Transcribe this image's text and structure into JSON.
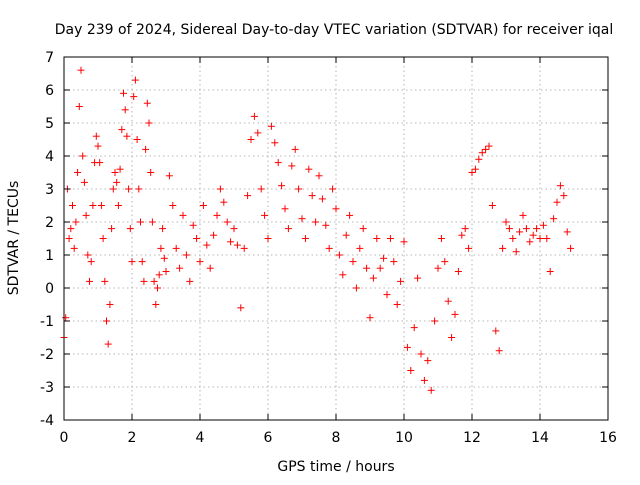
{
  "chart_data": {
    "type": "scatter",
    "title": "Day 239 of 2024, Sidereal Day-to-day VTEC variation (SDTVAR) for receiver iqal",
    "xlabel": "GPS time / hours",
    "ylabel": "SDTVAR / TECUs",
    "xlim": [
      0,
      16
    ],
    "ylim": [
      -4,
      7
    ],
    "xticks": [
      "0",
      "2",
      "4",
      "6",
      "8",
      "10",
      "12",
      "14",
      "16"
    ],
    "yticks": [
      "-4",
      "-3",
      "-2",
      "-1",
      "0",
      "1",
      "2",
      "3",
      "4",
      "5",
      "6",
      "7"
    ],
    "grid": true,
    "marker": "+",
    "color": "#ff0000",
    "series": [
      {
        "name": "SDTVAR",
        "x": [
          0.0,
          0.05,
          0.1,
          0.15,
          0.2,
          0.25,
          0.3,
          0.35,
          0.4,
          0.45,
          0.5,
          0.55,
          0.6,
          0.65,
          0.7,
          0.75,
          0.8,
          0.85,
          0.9,
          0.95,
          1.0,
          1.05,
          1.1,
          1.15,
          1.2,
          1.25,
          1.3,
          1.35,
          1.4,
          1.45,
          1.5,
          1.55,
          1.6,
          1.65,
          1.7,
          1.75,
          1.8,
          1.85,
          1.9,
          1.95,
          2.0,
          2.05,
          2.1,
          2.15,
          2.2,
          2.25,
          2.3,
          2.35,
          2.4,
          2.45,
          2.5,
          2.55,
          2.6,
          2.65,
          2.7,
          2.75,
          2.8,
          2.85,
          2.9,
          2.95,
          3.0,
          3.1,
          3.2,
          3.3,
          3.4,
          3.5,
          3.6,
          3.7,
          3.8,
          3.9,
          4.0,
          4.1,
          4.2,
          4.3,
          4.4,
          4.5,
          4.6,
          4.7,
          4.8,
          4.9,
          5.0,
          5.1,
          5.2,
          5.3,
          5.4,
          5.5,
          5.6,
          5.7,
          5.8,
          5.9,
          6.0,
          6.1,
          6.2,
          6.3,
          6.4,
          6.5,
          6.6,
          6.7,
          6.8,
          6.9,
          7.0,
          7.1,
          7.2,
          7.3,
          7.4,
          7.5,
          7.6,
          7.7,
          7.8,
          7.9,
          8.0,
          8.1,
          8.2,
          8.3,
          8.4,
          8.5,
          8.6,
          8.7,
          8.8,
          8.9,
          9.0,
          9.1,
          9.2,
          9.3,
          9.4,
          9.5,
          9.6,
          9.7,
          9.8,
          9.9,
          10.0,
          10.1,
          10.2,
          10.3,
          10.4,
          10.5,
          10.6,
          10.7,
          10.8,
          10.9,
          11.0,
          11.1,
          11.2,
          11.3,
          11.4,
          11.5,
          11.6,
          11.7,
          11.8,
          11.9,
          12.0,
          12.1,
          12.2,
          12.3,
          12.4,
          12.5,
          12.6,
          12.7,
          12.8,
          12.9,
          13.0,
          13.1,
          13.2,
          13.3,
          13.4,
          13.5,
          13.6,
          13.7,
          13.8,
          13.9,
          14.0,
          14.1,
          14.2,
          14.3,
          14.4,
          14.5,
          14.6,
          14.7,
          14.8,
          14.9
        ],
        "y": [
          -1.5,
          -0.9,
          3.0,
          1.5,
          1.8,
          2.5,
          1.2,
          2.0,
          3.5,
          5.5,
          6.6,
          4.0,
          3.2,
          2.2,
          1.0,
          0.2,
          0.8,
          2.5,
          3.8,
          4.6,
          4.3,
          3.8,
          2.5,
          1.5,
          0.2,
          -1.0,
          -1.7,
          -0.5,
          1.8,
          3.0,
          3.5,
          3.2,
          2.5,
          3.6,
          4.8,
          5.9,
          5.4,
          4.6,
          3.0,
          1.8,
          0.8,
          5.8,
          6.3,
          4.5,
          3.0,
          2.0,
          0.8,
          0.2,
          4.2,
          5.6,
          5.0,
          3.5,
          2.0,
          0.2,
          -0.5,
          0.0,
          0.4,
          1.2,
          1.8,
          0.9,
          0.5,
          3.4,
          2.5,
          1.2,
          0.6,
          2.2,
          1.0,
          0.2,
          1.9,
          1.5,
          0.8,
          2.5,
          1.3,
          0.6,
          1.6,
          2.2,
          3.0,
          2.6,
          2.0,
          1.4,
          1.8,
          1.3,
          -0.6,
          1.2,
          2.8,
          4.5,
          5.2,
          4.7,
          3.0,
          2.2,
          1.5,
          4.9,
          4.4,
          3.8,
          3.1,
          2.4,
          1.8,
          3.7,
          4.2,
          3.0,
          2.1,
          1.5,
          3.6,
          2.8,
          2.0,
          3.4,
          2.7,
          1.9,
          1.2,
          3.0,
          2.4,
          1.0,
          0.4,
          1.6,
          2.2,
          0.8,
          0.0,
          1.2,
          1.8,
          0.6,
          -0.9,
          0.3,
          1.5,
          0.6,
          0.9,
          -0.2,
          1.5,
          0.8,
          -0.5,
          0.2,
          1.4,
          -1.8,
          -2.5,
          -1.2,
          0.3,
          -2.0,
          -2.8,
          -2.2,
          -3.1,
          -1.0,
          0.6,
          1.5,
          0.8,
          -0.4,
          -1.5,
          -0.8,
          0.5,
          1.6,
          1.8,
          1.2,
          3.5,
          3.6,
          3.9,
          4.1,
          4.2,
          4.3,
          2.5,
          -1.3,
          -1.9,
          1.2,
          2.0,
          1.8,
          1.5,
          1.1,
          1.7,
          2.2,
          1.8,
          1.4,
          1.6,
          1.8,
          1.5,
          1.9,
          1.5,
          0.5,
          2.1,
          2.6,
          3.1,
          2.8,
          1.7,
          1.2
        ]
      }
    ]
  }
}
